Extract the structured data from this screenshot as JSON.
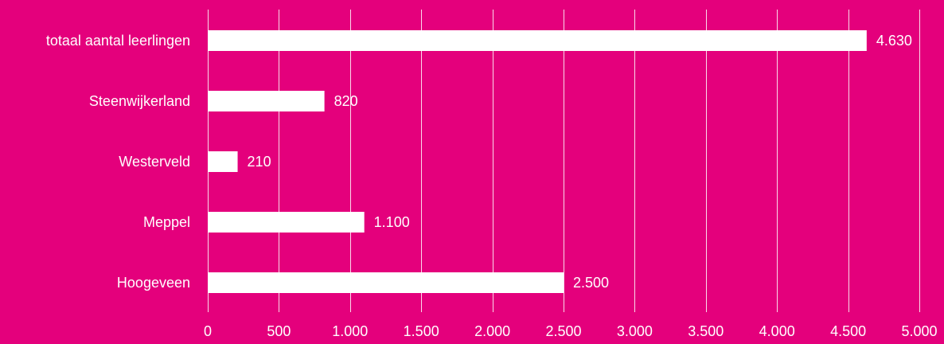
{
  "colors": {
    "background": "#e4007c",
    "bar": "#ffffff",
    "text": "#ffffff",
    "grid": "#ffffff"
  },
  "chart_data": {
    "type": "bar",
    "orientation": "horizontal",
    "categories": [
      "totaal aantal leerlingen",
      "Steenwijkerland",
      "Westerveld",
      "Meppel",
      "Hoogeveen"
    ],
    "values": [
      4630,
      820,
      210,
      1100,
      2500
    ],
    "data_labels": [
      "4.630",
      "820",
      "210",
      "1.100",
      "2.500"
    ],
    "title": "",
    "xlabel": "",
    "ylabel": "",
    "xlim": [
      0,
      5000
    ],
    "ticks": [
      0,
      500,
      1000,
      1500,
      2000,
      2500,
      3000,
      3500,
      4000,
      4500,
      5000
    ],
    "tick_labels": [
      "0",
      "500",
      "1.000",
      "1.500",
      "2.000",
      "2.500",
      "3.000",
      "3.500",
      "4.000",
      "4.500",
      "5.000"
    ],
    "grid": "vertical",
    "legend": "none"
  }
}
